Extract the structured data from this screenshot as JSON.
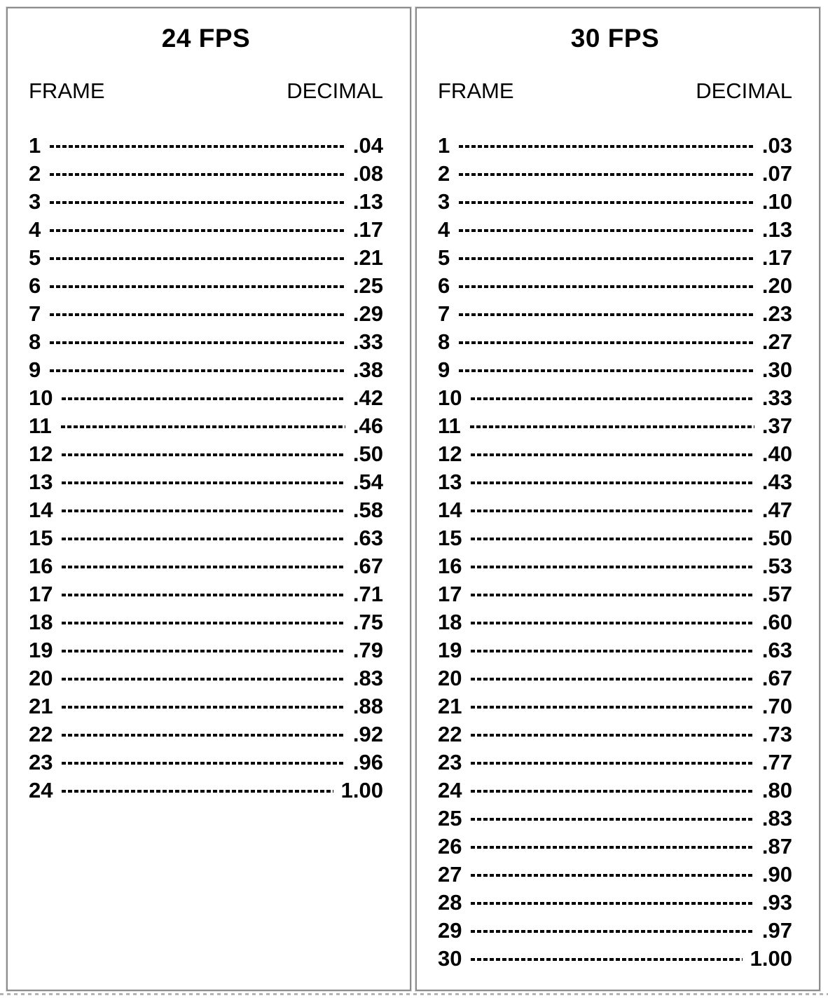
{
  "page": {
    "background": "#ffffff",
    "panel_border_color": "#8c8c8c",
    "panel_outer_halo_color": "#dadada",
    "text_color": "#000000",
    "dash_leader_color": "#000000",
    "bottom_rule_color": "#b4b4b4"
  },
  "tables": [
    {
      "title": "24 FPS",
      "columns": {
        "frame": "FRAME",
        "decimal": "DECIMAL"
      },
      "rows": [
        [
          "1",
          ".04"
        ],
        [
          "2",
          ".08"
        ],
        [
          "3",
          ".13"
        ],
        [
          "4",
          ".17"
        ],
        [
          "5",
          ".21"
        ],
        [
          "6",
          ".25"
        ],
        [
          "7",
          ".29"
        ],
        [
          "8",
          ".33"
        ],
        [
          "9",
          ".38"
        ],
        [
          "10",
          ".42"
        ],
        [
          "11",
          ".46"
        ],
        [
          "12",
          ".50"
        ],
        [
          "13",
          ".54"
        ],
        [
          "14",
          ".58"
        ],
        [
          "15",
          ".63"
        ],
        [
          "16",
          ".67"
        ],
        [
          "17",
          ".71"
        ],
        [
          "18",
          ".75"
        ],
        [
          "19",
          ".79"
        ],
        [
          "20",
          ".83"
        ],
        [
          "21",
          ".88"
        ],
        [
          "22",
          ".92"
        ],
        [
          "23",
          ".96"
        ],
        [
          "24",
          "1.00"
        ]
      ]
    },
    {
      "title": "30 FPS",
      "columns": {
        "frame": "FRAME",
        "decimal": "DECIMAL"
      },
      "rows": [
        [
          "1",
          ".03"
        ],
        [
          "2",
          ".07"
        ],
        [
          "3",
          ".10"
        ],
        [
          "4",
          ".13"
        ],
        [
          "5",
          ".17"
        ],
        [
          "6",
          ".20"
        ],
        [
          "7",
          ".23"
        ],
        [
          "8",
          ".27"
        ],
        [
          "9",
          ".30"
        ],
        [
          "10",
          ".33"
        ],
        [
          "11",
          ".37"
        ],
        [
          "12",
          ".40"
        ],
        [
          "13",
          ".43"
        ],
        [
          "14",
          ".47"
        ],
        [
          "15",
          ".50"
        ],
        [
          "16",
          ".53"
        ],
        [
          "17",
          ".57"
        ],
        [
          "18",
          ".60"
        ],
        [
          "19",
          ".63"
        ],
        [
          "20",
          ".67"
        ],
        [
          "21",
          ".70"
        ],
        [
          "22",
          ".73"
        ],
        [
          "23",
          ".77"
        ],
        [
          "24",
          ".80"
        ],
        [
          "25",
          ".83"
        ],
        [
          "26",
          ".87"
        ],
        [
          "27",
          ".90"
        ],
        [
          "28",
          ".93"
        ],
        [
          "29",
          ".97"
        ],
        [
          "30",
          "1.00"
        ]
      ]
    }
  ]
}
